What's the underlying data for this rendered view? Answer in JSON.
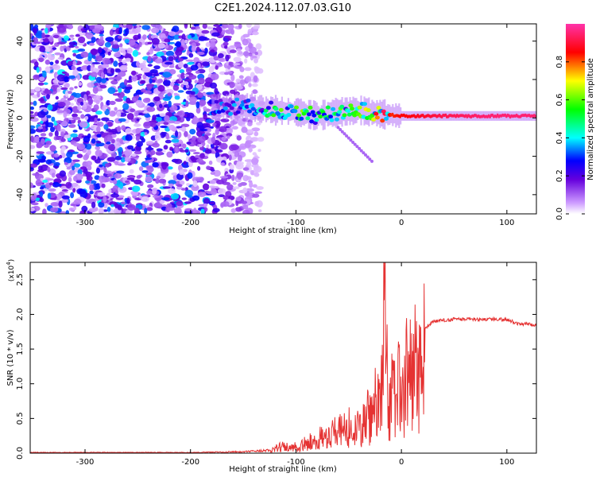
{
  "title": "C2E1.2024.112.07.03.G10",
  "colors": {
    "snr_line": "#e53232",
    "axis": "#000000",
    "background": "#ffffff"
  },
  "chart_data": [
    {
      "type": "heatmap",
      "xlabel": "Height of straight line (km)",
      "ylabel": "Frequency (Hz)",
      "xlim": [
        -352,
        128
      ],
      "ylim": [
        -50,
        49
      ],
      "xticks": [
        -300,
        -200,
        -100,
        0,
        100
      ],
      "yticks": [
        -40,
        -20,
        0,
        20,
        40
      ],
      "colorbar": {
        "label": "Normalized spectral amplitude",
        "range": [
          0,
          1
        ],
        "ticks": [
          "0.0",
          "0.2",
          "0.4",
          "0.6",
          "0.8"
        ],
        "colormap": "white-purple-blue-cyan-green-yellow-red-pink"
      },
      "noise_region_x": [
        -352,
        -140
      ],
      "signal_trace": [
        {
          "x": -180,
          "f": 5,
          "amp": 0.35
        },
        {
          "x": -160,
          "f": 6,
          "amp": 0.3
        },
        {
          "x": -140,
          "f": 5,
          "amp": 0.4
        },
        {
          "x": -120,
          "f": 4,
          "amp": 0.5
        },
        {
          "x": -100,
          "f": 3,
          "amp": 0.55
        },
        {
          "x": -80,
          "f": 1,
          "amp": 0.5
        },
        {
          "x": -60,
          "f": 3,
          "amp": 0.55
        },
        {
          "x": -40,
          "f": 4,
          "amp": 0.6
        },
        {
          "x": -20,
          "f": 2,
          "amp": 0.8
        },
        {
          "x": 0,
          "f": 1,
          "amp": 0.85
        },
        {
          "x": 40,
          "f": 1,
          "amp": 0.92
        },
        {
          "x": 80,
          "f": 1,
          "amp": 0.95
        },
        {
          "x": 128,
          "f": 1,
          "amp": 0.95
        }
      ]
    },
    {
      "type": "line",
      "xlabel": "Height of straight line (km)",
      "ylabel": "SNR (10 * v/v)",
      "y_multiplier": "(x10",
      "y_exponent": "4",
      "y_multiplier_close": ")",
      "xlim": [
        -352,
        128
      ],
      "ylim": [
        0,
        2.75
      ],
      "xticks": [
        -300,
        -200,
        -100,
        0,
        100
      ],
      "yticks": [
        0.0,
        0.5,
        1.0,
        1.5,
        2.0,
        2.5
      ],
      "series": [
        {
          "x": [
            -352,
            -300,
            -200,
            -150,
            -125,
            -115,
            -100,
            -80,
            -60,
            -40,
            -30,
            -20,
            -16,
            -12,
            -5,
            0,
            10,
            20,
            30,
            50,
            80,
            100,
            110,
            128
          ],
          "y": [
            0.01,
            0.01,
            0.01,
            0.02,
            0.04,
            0.12,
            0.12,
            0.25,
            0.4,
            0.55,
            0.7,
            1.05,
            1.8,
            1.05,
            1.2,
            1.3,
            1.55,
            1.75,
            1.9,
            1.93,
            1.93,
            1.93,
            1.87,
            1.85
          ]
        }
      ]
    }
  ]
}
